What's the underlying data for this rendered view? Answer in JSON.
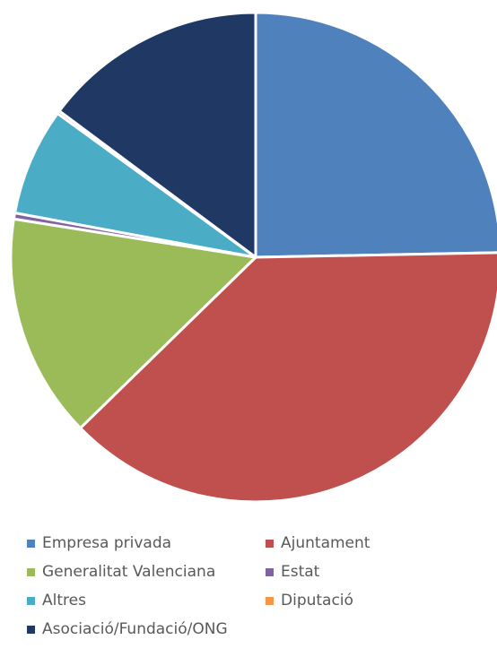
{
  "chart_data": {
    "type": "pie",
    "title": "",
    "series": [
      {
        "label": "Empresa privada",
        "value": 24.7,
        "color": "#4f81bd"
      },
      {
        "label": "Ajuntament",
        "value": 38.0,
        "color": "#c0504d"
      },
      {
        "label": "Generalitat Valenciana",
        "value": 14.8,
        "color": "#9bbb59"
      },
      {
        "label": "Estat",
        "value": 0.4,
        "color": "#8064a2"
      },
      {
        "label": "Altres",
        "value": 7.1,
        "color": "#4bacc6"
      },
      {
        "label": "Diputació",
        "value": 0.2,
        "color": "#f79646"
      },
      {
        "label": "Asociació/Fundació/ONG",
        "value": 14.8,
        "color": "#1f3864"
      }
    ],
    "legend_position": "bottom"
  }
}
